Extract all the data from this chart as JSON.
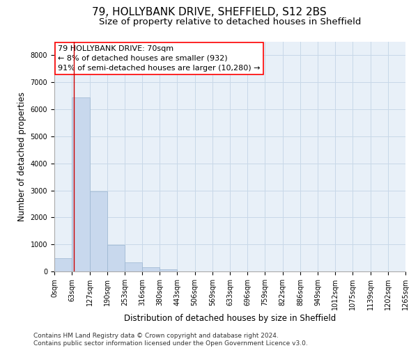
{
  "title": "79, HOLLYBANK DRIVE, SHEFFIELD, S12 2BS",
  "subtitle": "Size of property relative to detached houses in Sheffield",
  "xlabel": "Distribution of detached houses by size in Sheffield",
  "ylabel": "Number of detached properties",
  "bar_color": "#c8d8ed",
  "bar_edge_color": "#9ab5d0",
  "grid_color": "#c8d8e8",
  "background_color": "#e8f0f8",
  "annotation_text": "79 HOLLYBANK DRIVE: 70sqm\n← 8% of detached houses are smaller (932)\n91% of semi-detached houses are larger (10,280) →",
  "vline_x": 70,
  "vline_color": "#cc0000",
  "bin_edges": [
    0,
    63,
    127,
    190,
    253,
    316,
    380,
    443,
    506,
    569,
    633,
    696,
    759,
    822,
    886,
    949,
    1012,
    1075,
    1139,
    1202,
    1265
  ],
  "bar_heights": [
    480,
    6450,
    2950,
    970,
    330,
    145,
    70,
    0,
    0,
    0,
    0,
    0,
    0,
    0,
    0,
    0,
    0,
    0,
    0,
    0
  ],
  "ylim": [
    0,
    8500
  ],
  "yticks": [
    0,
    1000,
    2000,
    3000,
    4000,
    5000,
    6000,
    7000,
    8000
  ],
  "footnote": "Contains HM Land Registry data © Crown copyright and database right 2024.\nContains public sector information licensed under the Open Government Licence v3.0.",
  "title_fontsize": 11,
  "subtitle_fontsize": 9.5,
  "tick_fontsize": 7,
  "label_fontsize": 8.5,
  "annotation_fontsize": 8,
  "footnote_fontsize": 6.5
}
